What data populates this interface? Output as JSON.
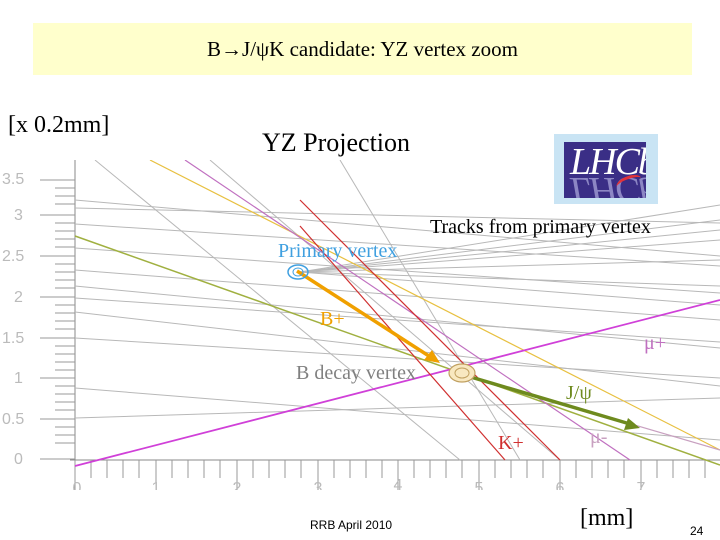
{
  "slide": {
    "title": "B→J/ψK candidate: YZ vertex zoom",
    "scale_label": "[x 0.2mm]",
    "projection_label": "YZ Projection",
    "logo_text": "LHCb",
    "footer": "RRB April 2010",
    "unit_label": "[mm]",
    "page_number": "24"
  },
  "plot": {
    "y_ticks": [
      "3.5",
      "3",
      "2.5",
      "2",
      "1.5",
      "1",
      "0.5",
      "0"
    ],
    "x_ticks": [
      "0",
      "1",
      "2",
      "3",
      "4",
      "5",
      "6",
      "7"
    ],
    "labels": {
      "tracks_from_pv": "Tracks from primary vertex",
      "primary_vertex": "Primary vertex",
      "b_plus": "B+",
      "b_decay_vertex": "B decay vertex",
      "mu_plus": "μ+",
      "jpsi": "J/ψ",
      "k_plus": "K+",
      "mu_minus": "μ-"
    },
    "colors": {
      "b_meson": "#f0a000",
      "jpsi": "#6e8a1e",
      "kaon": "#d03030",
      "muon_plus": "#c070c0",
      "muon_minus": "#c8a0c0",
      "magenta_track": "#d040d8",
      "grey_tracks": "#b8b8b8",
      "primary_vertex_label": "#40a0e0",
      "b_decay_label": "#808080"
    }
  }
}
